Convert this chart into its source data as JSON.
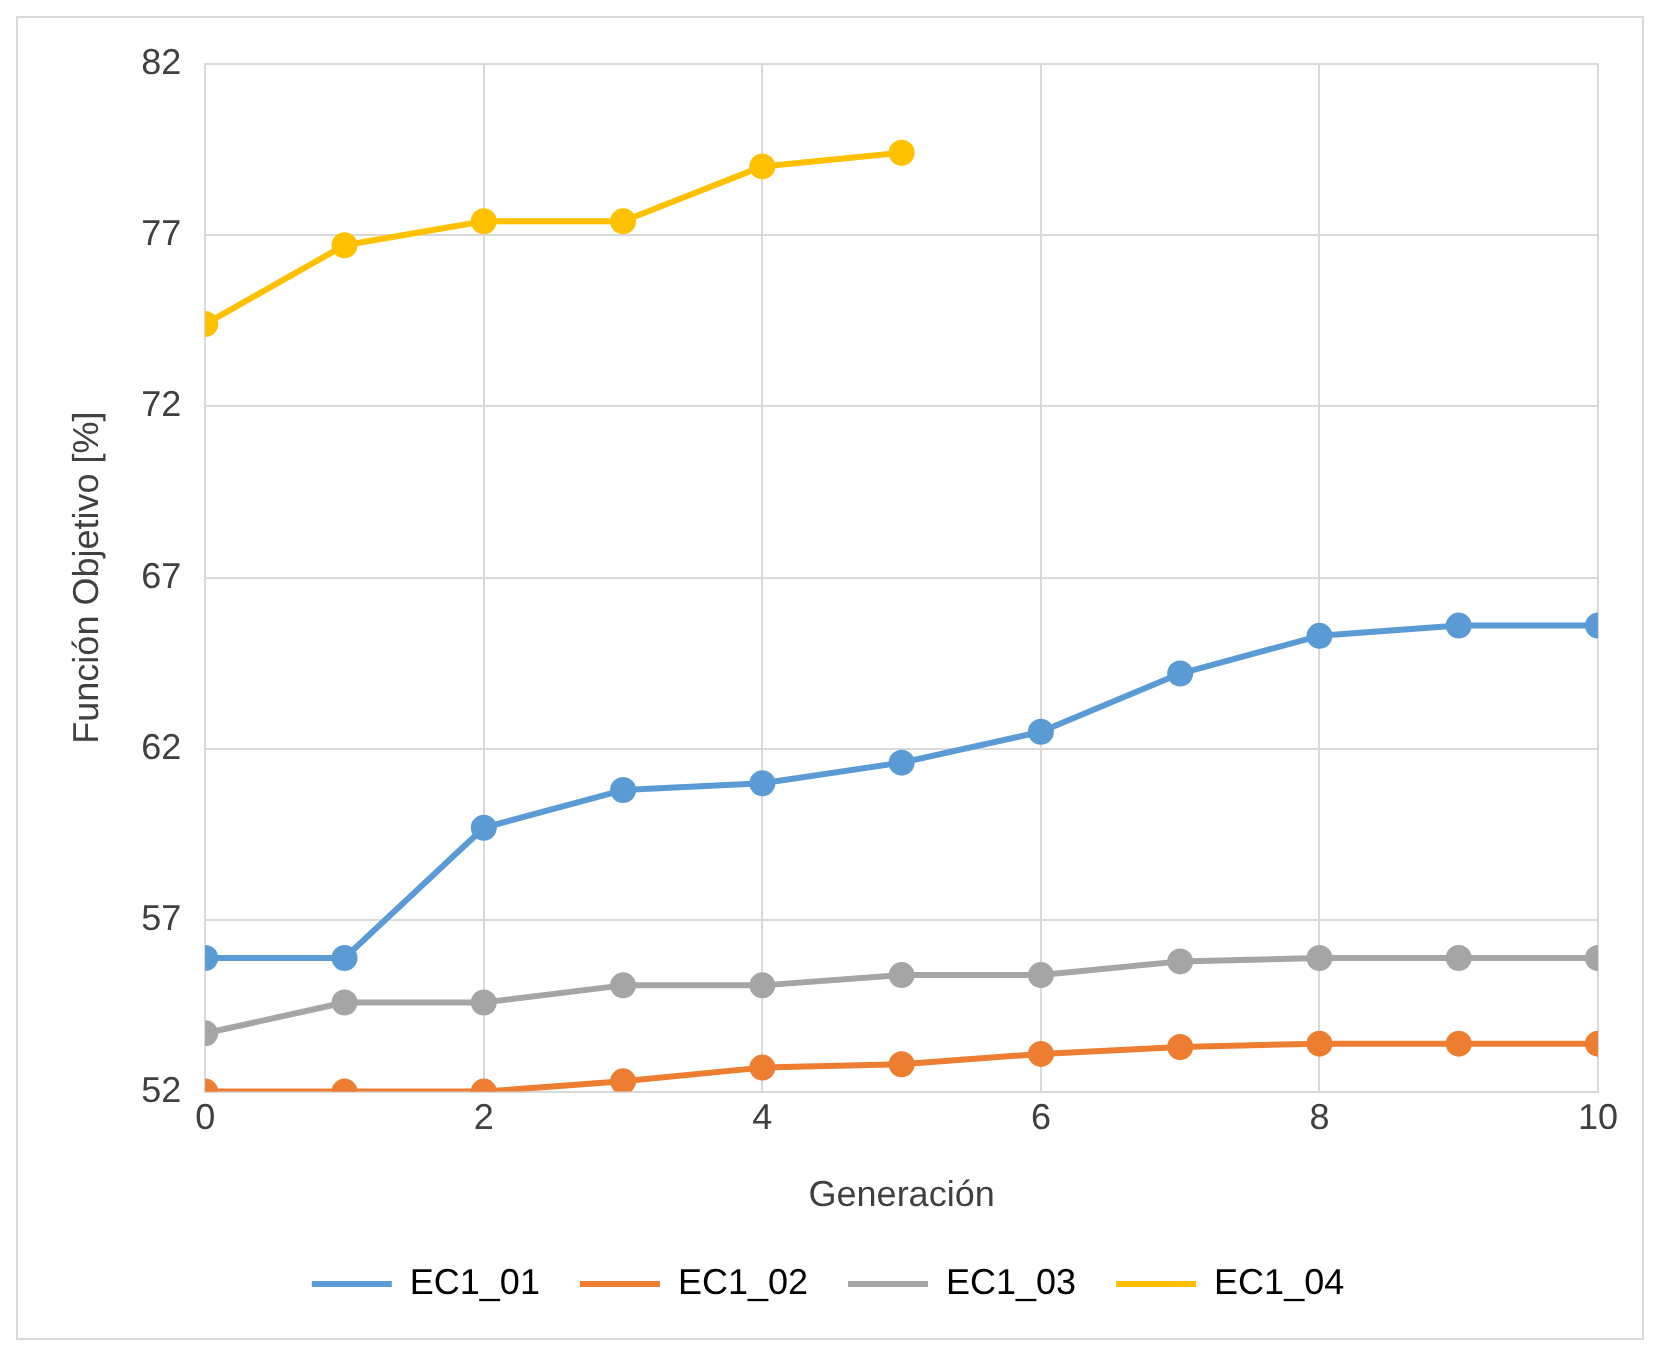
{
  "chart_data": {
    "type": "line",
    "xlabel": "Generación",
    "ylabel": "Función Objetivo [%]",
    "x": [
      0,
      1,
      2,
      3,
      4,
      5,
      6,
      7,
      8,
      9,
      10
    ],
    "xlim": [
      0,
      10
    ],
    "xticks": [
      0,
      2,
      4,
      6,
      8,
      10
    ],
    "ylim": [
      52,
      82
    ],
    "yticks": [
      52,
      57,
      62,
      67,
      72,
      77,
      82
    ],
    "grid": true,
    "legend": "bottom",
    "marker": "circle",
    "line_style": "solid",
    "series": [
      {
        "name": "EC1_01",
        "color": "#5b9bd5",
        "values": [
          55.9,
          55.9,
          59.7,
          60.8,
          61.0,
          61.6,
          62.5,
          64.2,
          65.3,
          65.6,
          65.6
        ]
      },
      {
        "name": "EC1_02",
        "color": "#ed7d31",
        "values": [
          52,
          52,
          52,
          52.3,
          52.7,
          52.8,
          53.1,
          53.3,
          53.4,
          53.4,
          53.4
        ]
      },
      {
        "name": "EC1_03",
        "color": "#a5a5a5",
        "values": [
          53.7,
          54.6,
          54.6,
          55.1,
          55.1,
          55.4,
          55.4,
          55.8,
          55.9,
          55.9,
          55.9
        ]
      },
      {
        "name": "EC1_04",
        "color": "#ffc000",
        "values": [
          74.4,
          76.7,
          77.4,
          77.4,
          79.0,
          79.4,
          null,
          null,
          null,
          null,
          null
        ]
      }
    ]
  }
}
